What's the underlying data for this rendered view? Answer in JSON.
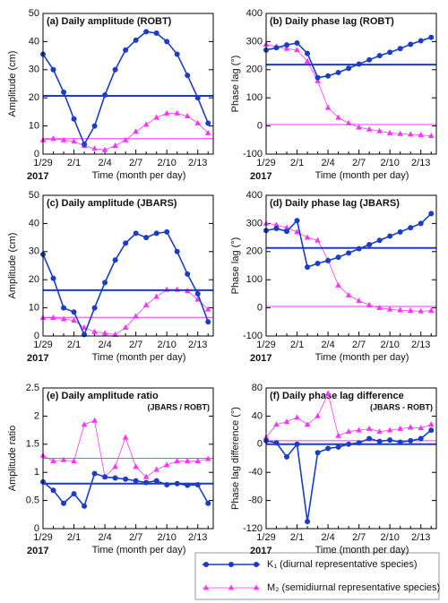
{
  "chart_data": [
    {
      "type": "line",
      "title": "(a) Daily amplitude (ROBT)",
      "ylabel": "Amplitude (cm)",
      "xlabel": "Time (month per day)",
      "year_label": "2017",
      "categories": [
        "1/29",
        null,
        null,
        "2/1",
        null,
        null,
        "2/4",
        null,
        null,
        "2/7",
        null,
        null,
        "2/10",
        null,
        null,
        "2/13",
        null
      ],
      "ylim": [
        0,
        50
      ],
      "yticks": [
        0,
        10,
        20,
        30,
        40,
        50
      ],
      "series": [
        {
          "name": "K₁ (diurnal representative species)",
          "color": "#1a3cc8",
          "mean": 20.7,
          "values": [
            35.5,
            30,
            22,
            12.5,
            3.5,
            10,
            21,
            30,
            37,
            40.5,
            43.5,
            43,
            40,
            35.5,
            28,
            20,
            11
          ]
        },
        {
          "name": "M₂ (semidiurnal representative species)",
          "color": "#ff33ff",
          "mean": 5.5,
          "values": [
            5,
            5.5,
            5,
            4.5,
            3,
            2,
            1.5,
            3,
            5,
            8,
            10.5,
            13,
            14.5,
            14.5,
            13.5,
            11,
            7.5
          ]
        }
      ]
    },
    {
      "type": "line",
      "title": "(b) Daily phase lag (ROBT)",
      "ylabel": "Phase lag (°)",
      "xlabel": "Time (month per day)",
      "year_label": "2017",
      "categories": [
        "1/29",
        null,
        null,
        "2/1",
        null,
        null,
        "2/4",
        null,
        null,
        "2/7",
        null,
        null,
        "2/10",
        null,
        null,
        "2/13",
        null
      ],
      "ylim": [
        -100,
        400
      ],
      "yticks": [
        -100,
        0,
        100,
        200,
        300,
        400
      ],
      "series": [
        {
          "color": "#1a3cc8",
          "mean": 218,
          "values": [
            270,
            278,
            288,
            295,
            258,
            172,
            178,
            190,
            205,
            220,
            235,
            250,
            262,
            275,
            290,
            303,
            315
          ]
        },
        {
          "color": "#ff33ff",
          "mean": 5,
          "values": [
            290,
            282,
            275,
            270,
            230,
            160,
            65,
            30,
            10,
            -5,
            -12,
            -18,
            -25,
            -28,
            -30,
            -32,
            -35
          ]
        }
      ]
    },
    {
      "type": "line",
      "title": "(c) Daily amplitude (JBARS)",
      "ylabel": "Amplitude (cm)",
      "xlabel": "Time (month per day)",
      "year_label": "2017",
      "categories": [
        "1/29",
        null,
        null,
        "2/1",
        null,
        null,
        "2/4",
        null,
        null,
        "2/7",
        null,
        null,
        "2/10",
        null,
        null,
        "2/13",
        null
      ],
      "ylim": [
        0,
        50
      ],
      "yticks": [
        0,
        10,
        20,
        30,
        40,
        50
      ],
      "series": [
        {
          "color": "#1a3cc8",
          "mean": 16.3,
          "values": [
            29,
            20.5,
            10,
            8.5,
            0.5,
            10,
            19,
            27,
            33,
            36.5,
            35,
            36.5,
            37,
            30,
            22,
            15,
            5
          ]
        },
        {
          "color": "#ff33ff",
          "mean": 6.6,
          "values": [
            6.5,
            6.5,
            6,
            5.5,
            3,
            1.5,
            1,
            0.5,
            3,
            7,
            11,
            14,
            16.5,
            16.5,
            16,
            13,
            9.5
          ]
        }
      ]
    },
    {
      "type": "line",
      "title": "(d) Daily phase lag (JBARS)",
      "ylabel": "Phase lag (°)",
      "xlabel": "Time (month per day)",
      "year_label": "2017",
      "categories": [
        "1/29",
        null,
        null,
        "2/1",
        null,
        null,
        "2/4",
        null,
        null,
        "2/7",
        null,
        null,
        "2/10",
        null,
        null,
        "2/13",
        null
      ],
      "ylim": [
        -100,
        400
      ],
      "yticks": [
        -100,
        0,
        100,
        200,
        300,
        400
      ],
      "series": [
        {
          "color": "#1a3cc8",
          "mean": 213,
          "values": [
            275,
            282,
            272,
            310,
            145,
            158,
            168,
            180,
            195,
            210,
            225,
            240,
            255,
            270,
            285,
            300,
            335
          ]
        },
        {
          "color": "#ff33ff",
          "mean": 5,
          "values": [
            300,
            295,
            285,
            270,
            250,
            240,
            170,
            80,
            45,
            25,
            10,
            0,
            -5,
            -8,
            -10,
            -12,
            -10
          ]
        }
      ]
    },
    {
      "type": "line",
      "title": "(e) Daily amplitude ratio",
      "subtitle": "(JBARS / ROBT)",
      "ylabel": "Amplitude ratio",
      "xlabel": "Time (month per day)",
      "year_label": "2017",
      "categories": [
        "1/29",
        null,
        null,
        "2/1",
        null,
        null,
        "2/4",
        null,
        null,
        "2/7",
        null,
        null,
        "2/10",
        null,
        null,
        "2/13",
        null
      ],
      "ylim": [
        0,
        2.5
      ],
      "yticks": [
        0,
        0.5,
        1,
        1.5,
        2,
        2.5
      ],
      "series": [
        {
          "color": "#1a3cc8",
          "mean": 0.8,
          "values": [
            0.83,
            0.68,
            0.45,
            0.62,
            0.4,
            0.98,
            0.92,
            0.9,
            0.88,
            0.85,
            0.82,
            0.85,
            0.78,
            0.8,
            0.77,
            0.78,
            0.45
          ]
        },
        {
          "color": "#ff33ff",
          "mean": 1.25,
          "values": [
            1.3,
            1.2,
            1.22,
            1.2,
            1.85,
            1.92,
            0.92,
            1.1,
            1.62,
            1.1,
            0.92,
            1.05,
            1.13,
            1.2,
            1.2,
            1.2,
            1.24
          ]
        }
      ]
    },
    {
      "type": "line",
      "title": "(f) Daily phase lag difference",
      "subtitle": "(JBARS - ROBT)",
      "ylabel": "Phase lag difference (°)",
      "xlabel": "Time (month per day)",
      "year_label": "2017",
      "categories": [
        "1/29",
        null,
        null,
        "2/1",
        null,
        null,
        "2/4",
        null,
        null,
        "2/7",
        null,
        null,
        "2/10",
        null,
        null,
        "2/13",
        null
      ],
      "ylim": [
        -120,
        80
      ],
      "yticks": [
        -120,
        -80,
        -40,
        0,
        40,
        80
      ],
      "series": [
        {
          "color": "#1a3cc8",
          "mean": 0,
          "values": [
            5,
            2,
            -18,
            0,
            -110,
            -12,
            -6,
            -4,
            0,
            2,
            8,
            4,
            6,
            3,
            5,
            8,
            20
          ]
        },
        {
          "color": "#ff33ff",
          "mean": 5,
          "values": [
            10,
            28,
            32,
            38,
            28,
            40,
            72,
            12,
            18,
            20,
            22,
            18,
            20,
            22,
            24,
            23,
            28
          ]
        }
      ]
    }
  ]
}
